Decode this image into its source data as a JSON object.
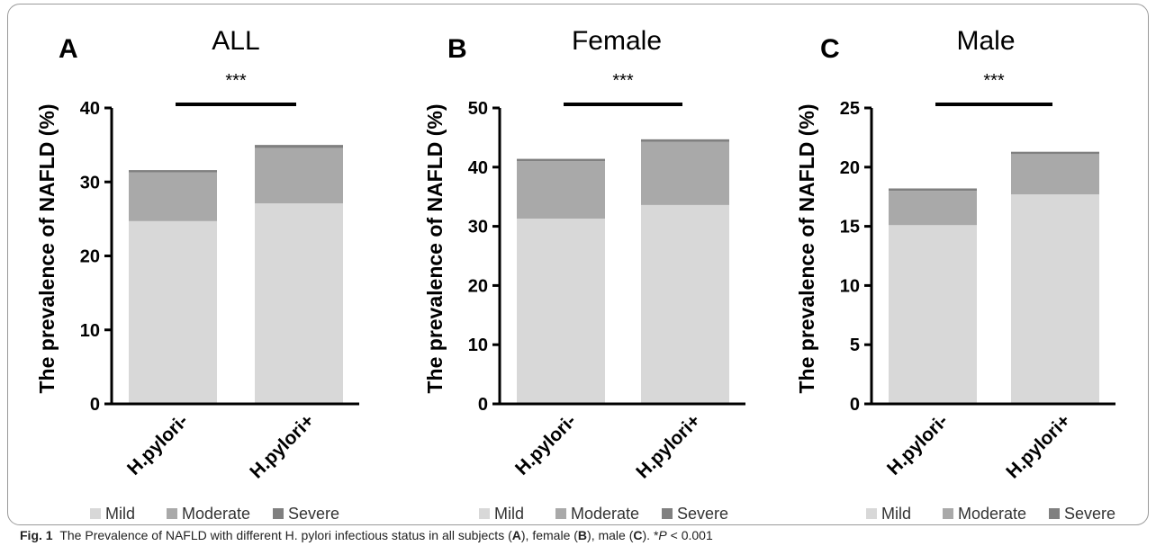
{
  "colors": {
    "mild": "#d8d8d8",
    "moderate": "#a9a9a9",
    "severe": "#808080",
    "axis": "#000000",
    "bracket": "#000000"
  },
  "legend": [
    "Mild",
    "Moderate",
    "Severe"
  ],
  "caption": {
    "label": "Fig. 1",
    "text_a": "The Prevalence of NAFLD with different H. pylori infectious status in all subjects (",
    "a": "A",
    "text_b": "), female (",
    "b": "B",
    "text_c": "), male (",
    "c": "C",
    "text_d": "). *",
    "p": "P",
    "text_e": " < 0.001"
  },
  "chart_data": [
    {
      "type": "bar",
      "stacked": true,
      "panel": "A",
      "title": "ALL",
      "ylabel": "The prevalence of NAFLD (%)",
      "ylim": [
        0,
        40
      ],
      "yticks": [
        0,
        10,
        20,
        30,
        40
      ],
      "categories": [
        "H.pylori-",
        "H.pylori+"
      ],
      "series": [
        {
          "name": "Mild",
          "values": [
            24.7,
            27.1
          ]
        },
        {
          "name": "Moderate",
          "values": [
            6.6,
            7.5
          ]
        },
        {
          "name": "Severe",
          "values": [
            0.3,
            0.4
          ]
        }
      ],
      "annotation": "***",
      "legend_position": "bottom"
    },
    {
      "type": "bar",
      "stacked": true,
      "panel": "B",
      "title": "Female",
      "ylabel": "The prevalence of NAFLD (%)",
      "ylim": [
        0,
        50
      ],
      "yticks": [
        0,
        10,
        20,
        30,
        40,
        50
      ],
      "categories": [
        "H.pylori-",
        "H.pylori+"
      ],
      "series": [
        {
          "name": "Mild",
          "values": [
            31.3,
            33.6
          ]
        },
        {
          "name": "Moderate",
          "values": [
            9.7,
            10.7
          ]
        },
        {
          "name": "Severe",
          "values": [
            0.4,
            0.4
          ]
        }
      ],
      "annotation": "***",
      "legend_position": "bottom"
    },
    {
      "type": "bar",
      "stacked": true,
      "panel": "C",
      "title": "Male",
      "ylabel": "The prevalence of NAFLD (%)",
      "ylim": [
        0,
        25
      ],
      "yticks": [
        0,
        5,
        10,
        15,
        20,
        25
      ],
      "categories": [
        "H.pylori-",
        "H.pylori+"
      ],
      "series": [
        {
          "name": "Mild",
          "values": [
            15.1,
            17.7
          ]
        },
        {
          "name": "Moderate",
          "values": [
            2.9,
            3.4
          ]
        },
        {
          "name": "Severe",
          "values": [
            0.2,
            0.2
          ]
        }
      ],
      "annotation": "***",
      "legend_position": "bottom"
    }
  ]
}
